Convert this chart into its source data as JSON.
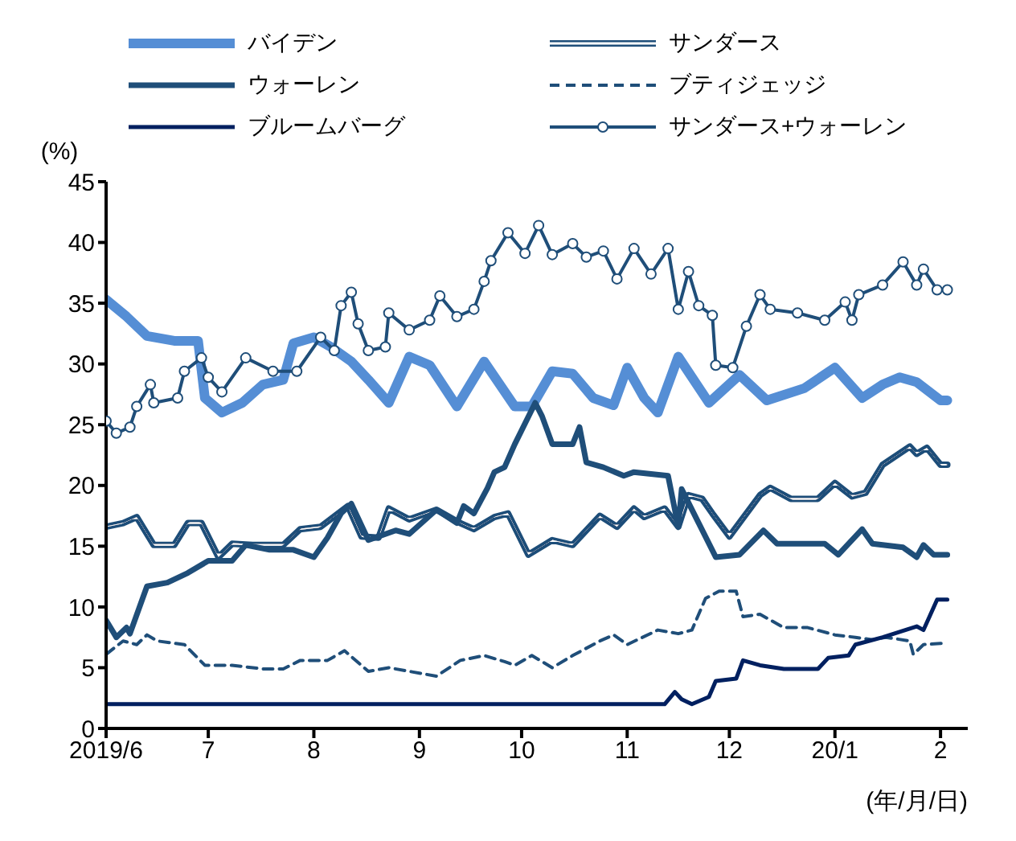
{
  "chart_data": {
    "type": "line",
    "ylabel": "(%)",
    "xlabel": "(年/月/日)",
    "xlim": [
      "2019-06-01",
      "2020-02-09"
    ],
    "xticks": [
      {
        "value": "2019-06-01",
        "label": "2019/6"
      },
      {
        "value": "2019-07-01",
        "label": "7"
      },
      {
        "value": "2019-08-01",
        "label": "8"
      },
      {
        "value": "2019-09-01",
        "label": "9"
      },
      {
        "value": "2019-10-01",
        "label": "10"
      },
      {
        "value": "2019-11-01",
        "label": "11"
      },
      {
        "value": "2019-12-01",
        "label": "12"
      },
      {
        "value": "2020-01-01",
        "label": "20/1"
      },
      {
        "value": "2020-02-01",
        "label": "2"
      }
    ],
    "ylim": [
      0,
      45
    ],
    "yticks": [
      0,
      5,
      10,
      15,
      20,
      25,
      30,
      35,
      40,
      45
    ],
    "grid": false,
    "legend": "top",
    "marker": "none",
    "line_style": "solid",
    "series": [
      {
        "name": "バイデン",
        "color": "#558ed5",
        "x": [
          "2019-06-01",
          "2019-06-07",
          "2019-06-13",
          "2019-06-21",
          "2019-06-28",
          "2019-06-30",
          "2019-07-05",
          "2019-07-11",
          "2019-07-17",
          "2019-07-23",
          "2019-07-26",
          "2019-08-01",
          "2019-08-06",
          "2019-08-12",
          "2019-08-17",
          "2019-08-23",
          "2019-08-29",
          "2019-09-04",
          "2019-09-12",
          "2019-09-20",
          "2019-09-29",
          "2019-10-04",
          "2019-10-10",
          "2019-10-16",
          "2019-10-22",
          "2019-10-28",
          "2019-11-01",
          "2019-11-06",
          "2019-11-10",
          "2019-11-16",
          "2019-11-25",
          "2019-12-04",
          "2019-12-12",
          "2019-12-23",
          "2020-01-01",
          "2020-01-09",
          "2020-01-15",
          "2020-01-20",
          "2020-01-25",
          "2020-02-01",
          "2020-02-03"
        ],
        "values": [
          35.3,
          33.9,
          32.3,
          31.9,
          31.9,
          27.2,
          26,
          26.8,
          28.3,
          28.7,
          31.7,
          32.2,
          31.4,
          30.2,
          28.7,
          26.8,
          30.6,
          29.9,
          26.5,
          30.2,
          26.5,
          26.5,
          29.4,
          29.2,
          27.2,
          26.6,
          29.7,
          27.2,
          26,
          30.6,
          26.8,
          29.1,
          27,
          28,
          29.7,
          27.2,
          28.3,
          28.9,
          28.5,
          27,
          27
        ]
      },
      {
        "name": "サンダース",
        "color": "#1f4e79",
        "x": [
          "2019-06-01",
          "2019-06-06",
          "2019-06-10",
          "2019-06-15",
          "2019-06-21",
          "2019-06-25",
          "2019-06-29",
          "2019-07-04",
          "2019-07-08",
          "2019-07-14",
          "2019-07-23",
          "2019-07-28",
          "2019-08-03",
          "2019-08-11",
          "2019-08-15",
          "2019-08-20",
          "2019-08-23",
          "2019-08-29",
          "2019-09-06",
          "2019-09-13",
          "2019-09-17",
          "2019-09-23",
          "2019-09-27",
          "2019-10-03",
          "2019-10-10",
          "2019-10-16",
          "2019-10-24",
          "2019-10-29",
          "2019-11-03",
          "2019-11-06",
          "2019-11-12",
          "2019-11-16",
          "2019-11-19",
          "2019-11-23",
          "2019-11-26",
          "2019-12-01",
          "2019-12-10",
          "2019-12-13",
          "2019-12-19",
          "2019-12-27",
          "2020-01-01",
          "2020-01-06",
          "2020-01-10",
          "2020-01-15",
          "2020-01-23",
          "2020-01-25",
          "2020-01-28",
          "2020-02-01",
          "2020-02-03"
        ],
        "values": [
          16.6,
          16.9,
          17.4,
          15.1,
          15.1,
          16.9,
          16.9,
          14.1,
          15.2,
          15.1,
          15.1,
          16.4,
          16.6,
          18.3,
          15.8,
          15.7,
          18.1,
          17.2,
          18,
          16.9,
          16.4,
          17.4,
          17.7,
          14.3,
          15.5,
          15.1,
          17.5,
          16.6,
          18.1,
          17.4,
          18.1,
          16.6,
          19.2,
          18.9,
          17.7,
          15.8,
          19.2,
          19.8,
          18.9,
          18.9,
          20.2,
          19.1,
          19.4,
          21.7,
          23.2,
          22.6,
          23.1,
          21.7,
          21.7
        ]
      },
      {
        "name": "ウォーレン",
        "color": "#1f4e79",
        "x": [
          "2019-06-01",
          "2019-06-04",
          "2019-06-07",
          "2019-06-08",
          "2019-06-13",
          "2019-06-19",
          "2019-06-25",
          "2019-07-01",
          "2019-07-08",
          "2019-07-12",
          "2019-07-19",
          "2019-07-26",
          "2019-08-01",
          "2019-08-05",
          "2019-08-09",
          "2019-08-12",
          "2019-08-17",
          "2019-08-25",
          "2019-08-29",
          "2019-09-06",
          "2019-09-12",
          "2019-09-14",
          "2019-09-17",
          "2019-09-21",
          "2019-09-23",
          "2019-09-26",
          "2019-09-29",
          "2019-10-05",
          "2019-10-07",
          "2019-10-10",
          "2019-10-16",
          "2019-10-18",
          "2019-10-20",
          "2019-10-25",
          "2019-10-31",
          "2019-11-03",
          "2019-11-13",
          "2019-11-16",
          "2019-11-17",
          "2019-11-22",
          "2019-11-27",
          "2019-12-04",
          "2019-12-11",
          "2019-12-15",
          "2019-12-29",
          "2020-01-02",
          "2020-01-09",
          "2020-01-12",
          "2020-01-21",
          "2020-01-25",
          "2020-01-27",
          "2020-01-30",
          "2020-02-03"
        ],
        "values": [
          8.9,
          7.5,
          8.3,
          7.8,
          11.7,
          12,
          12.8,
          13.8,
          13.8,
          15.1,
          14.7,
          14.7,
          14.1,
          15.7,
          17.7,
          18.5,
          15.5,
          16.3,
          16,
          18,
          16.9,
          18.3,
          17.7,
          19.8,
          21.1,
          21.5,
          23.4,
          26.8,
          25.7,
          23.4,
          23.4,
          24.8,
          21.9,
          21.5,
          20.8,
          21.1,
          20.8,
          16.6,
          19.7,
          16.9,
          14.1,
          14.3,
          16.3,
          15.2,
          15.2,
          14.3,
          16.4,
          15.2,
          14.9,
          14.1,
          15.1,
          14.3,
          14.3
        ]
      },
      {
        "name": "ブティジェッジ",
        "color": "#1f4e79",
        "line_style": "dashed",
        "x": [
          "2019-06-01",
          "2019-06-06",
          "2019-06-10",
          "2019-06-13",
          "2019-06-16",
          "2019-06-24",
          "2019-06-30",
          "2019-07-08",
          "2019-07-17",
          "2019-07-23",
          "2019-07-28",
          "2019-08-05",
          "2019-08-10",
          "2019-08-17",
          "2019-08-23",
          "2019-08-29",
          "2019-09-06",
          "2019-09-13",
          "2019-09-20",
          "2019-09-26",
          "2019-09-29",
          "2019-10-04",
          "2019-10-10",
          "2019-10-16",
          "2019-10-24",
          "2019-10-28",
          "2019-11-01",
          "2019-11-10",
          "2019-11-16",
          "2019-11-20",
          "2019-11-24",
          "2019-11-28",
          "2019-12-03",
          "2019-12-05",
          "2019-12-10",
          "2019-12-17",
          "2019-12-24",
          "2020-01-01",
          "2020-01-07",
          "2020-01-12",
          "2020-01-16",
          "2020-01-23",
          "2020-01-24",
          "2020-01-27",
          "2020-02-01",
          "2020-02-03"
        ],
        "values": [
          6.1,
          7.2,
          6.9,
          7.7,
          7.2,
          6.9,
          5.2,
          5.2,
          4.9,
          4.9,
          5.6,
          5.6,
          6.4,
          4.7,
          5,
          4.7,
          4.3,
          5.6,
          6,
          5.5,
          5.2,
          6,
          5,
          6,
          7.2,
          7.7,
          6.9,
          8.1,
          7.8,
          8.1,
          10.7,
          11.3,
          11.3,
          9.2,
          9.4,
          8.3,
          8.3,
          7.7,
          7.5,
          7.3,
          7.5,
          7.2,
          6.1,
          6.9,
          7,
          7
        ]
      },
      {
        "name": "ブルームバーグ",
        "color": "#002060",
        "x": [
          "2019-06-01",
          "2019-11-12",
          "2019-11-15",
          "2019-11-17",
          "2019-11-20",
          "2019-11-25",
          "2019-11-27",
          "2019-12-03",
          "2019-12-05",
          "2019-12-10",
          "2019-12-17",
          "2019-12-27",
          "2019-12-30",
          "2020-01-05",
          "2020-01-07",
          "2020-01-15",
          "2020-01-25",
          "2020-01-27",
          "2020-01-31",
          "2020-02-03"
        ],
        "values": [
          2,
          2,
          3,
          2.4,
          2,
          2.6,
          3.9,
          4.1,
          5.6,
          5.2,
          4.9,
          4.9,
          5.8,
          6,
          6.9,
          7.5,
          8.4,
          8.1,
          10.6,
          10.6
        ]
      },
      {
        "name": "サンダース+ウォーレン",
        "color": "#1f4e79",
        "marker": "circle",
        "x": [
          "2019-06-01",
          "2019-06-04",
          "2019-06-08",
          "2019-06-10",
          "2019-06-14",
          "2019-06-15",
          "2019-06-22",
          "2019-06-24",
          "2019-06-29",
          "2019-07-01",
          "2019-07-05",
          "2019-07-12",
          "2019-07-20",
          "2019-07-27",
          "2019-08-03",
          "2019-08-07",
          "2019-08-09",
          "2019-08-12",
          "2019-08-14",
          "2019-08-17",
          "2019-08-22",
          "2019-08-23",
          "2019-08-29",
          "2019-09-04",
          "2019-09-07",
          "2019-09-12",
          "2019-09-17",
          "2019-09-20",
          "2019-09-22",
          "2019-09-27",
          "2019-10-02",
          "2019-10-06",
          "2019-10-10",
          "2019-10-16",
          "2019-10-20",
          "2019-10-25",
          "2019-10-29",
          "2019-11-03",
          "2019-11-08",
          "2019-11-13",
          "2019-11-16",
          "2019-11-19",
          "2019-11-22",
          "2019-11-26",
          "2019-11-27",
          "2019-12-02",
          "2019-12-06",
          "2019-12-10",
          "2019-12-13",
          "2019-12-21",
          "2019-12-29",
          "2020-01-04",
          "2020-01-06",
          "2020-01-08",
          "2020-01-15",
          "2020-01-21",
          "2020-01-25",
          "2020-01-27",
          "2020-01-31",
          "2020-02-03"
        ],
        "values": [
          25.3,
          24.3,
          24.8,
          26.5,
          28.3,
          26.8,
          27.2,
          29.4,
          30.5,
          28.9,
          27.7,
          30.5,
          29.4,
          29.4,
          32.2,
          31.1,
          34.8,
          35.9,
          33.3,
          31.1,
          31.4,
          34.2,
          32.8,
          33.6,
          35.6,
          33.9,
          34.5,
          36.8,
          38.5,
          40.8,
          39.1,
          41.4,
          39,
          39.9,
          38.8,
          39.3,
          37,
          39.5,
          37.4,
          39.5,
          34.5,
          37.6,
          34.8,
          34,
          29.9,
          29.7,
          33.1,
          35.7,
          34.5,
          34.2,
          33.6,
          35.1,
          33.6,
          35.7,
          36.5,
          38.4,
          36.5,
          37.8,
          36.1,
          36.1
        ]
      }
    ]
  }
}
